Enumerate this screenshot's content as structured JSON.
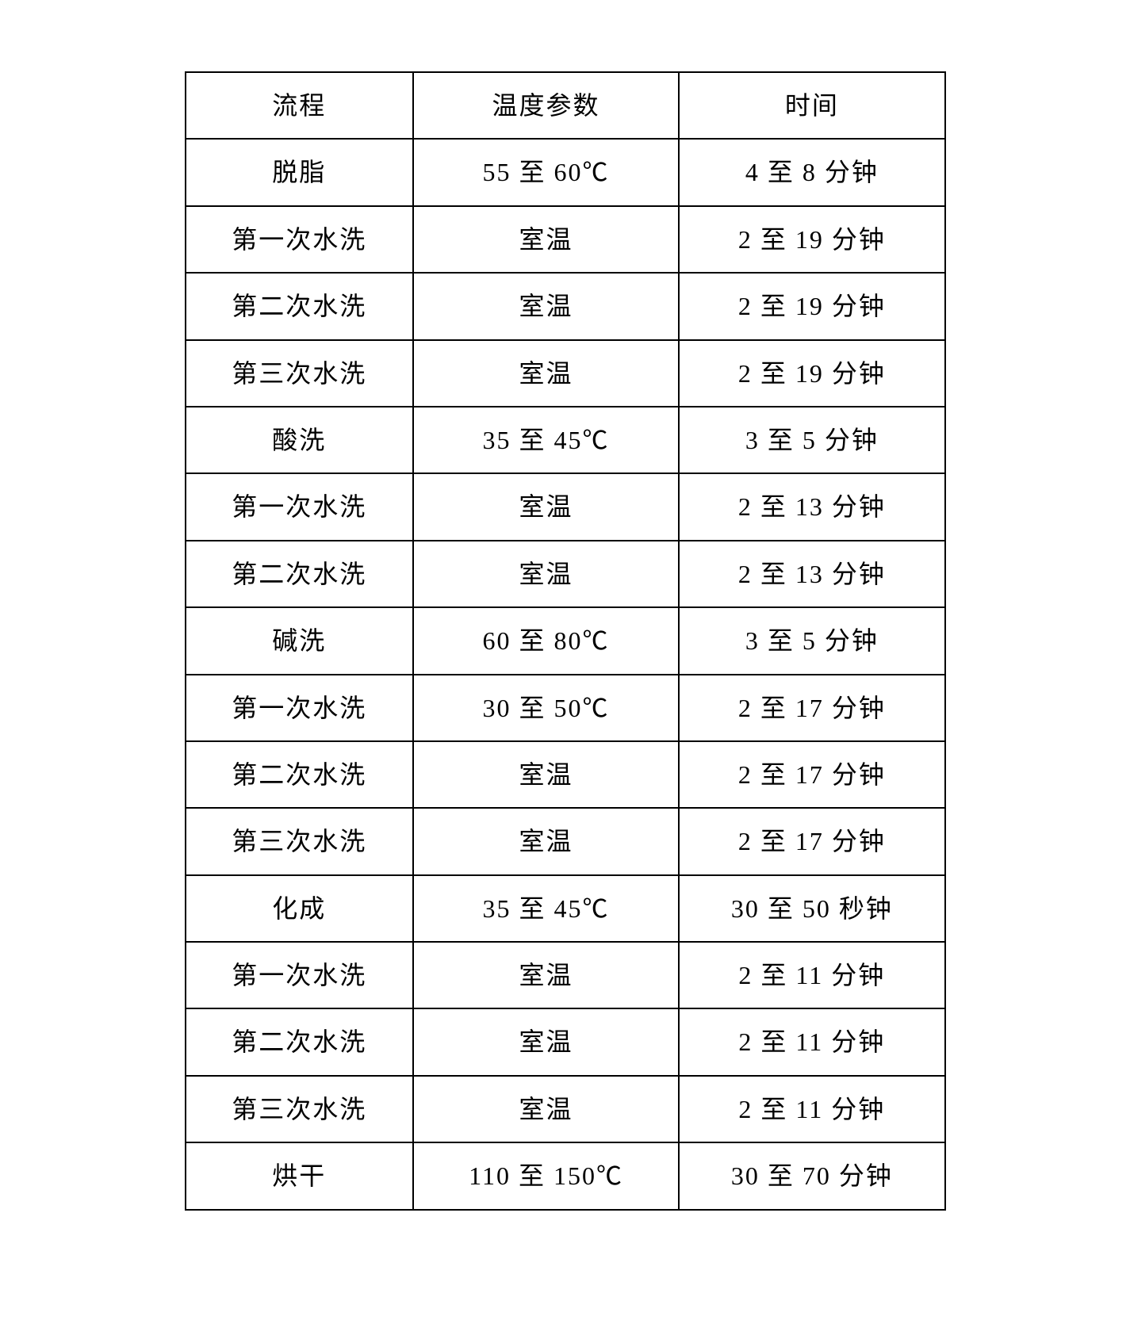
{
  "table": {
    "columns": [
      "流程",
      "温度参数",
      "时间"
    ],
    "rows": [
      [
        "脱脂",
        "55 至 60℃",
        "4 至 8 分钟"
      ],
      [
        "第一次水洗",
        "室温",
        "2 至 19 分钟"
      ],
      [
        "第二次水洗",
        "室温",
        "2 至 19 分钟"
      ],
      [
        "第三次水洗",
        "室温",
        "2 至 19 分钟"
      ],
      [
        "酸洗",
        "35 至 45℃",
        "3 至 5 分钟"
      ],
      [
        "第一次水洗",
        "室温",
        "2 至 13 分钟"
      ],
      [
        "第二次水洗",
        "室温",
        "2 至 13 分钟"
      ],
      [
        "碱洗",
        "60 至 80℃",
        "3 至 5 分钟"
      ],
      [
        "第一次水洗",
        "30 至 50℃",
        "2 至 17 分钟"
      ],
      [
        "第二次水洗",
        "室温",
        "2 至 17 分钟"
      ],
      [
        "第三次水洗",
        "室温",
        "2 至 17 分钟"
      ],
      [
        "化成",
        "35 至 45℃",
        "30 至 50 秒钟"
      ],
      [
        "第一次水洗",
        "室温",
        "2 至 11 分钟"
      ],
      [
        "第二次水洗",
        "室温",
        "2 至 11 分钟"
      ],
      [
        "第三次水洗",
        "室温",
        "2 至 11 分钟"
      ],
      [
        "烘干",
        "110 至 150℃",
        "30 至 70 分钟"
      ]
    ],
    "styling": {
      "border_color": "#000000",
      "border_width": 2,
      "background_color": "#ffffff",
      "text_color": "#000000",
      "font_family": "SimSun",
      "cell_fontsize": 32,
      "cell_padding_vertical": 22,
      "cell_padding_horizontal": 10,
      "letter_spacing": 2,
      "column_widths_percent": [
        30,
        35,
        35
      ],
      "text_align": "center"
    }
  }
}
